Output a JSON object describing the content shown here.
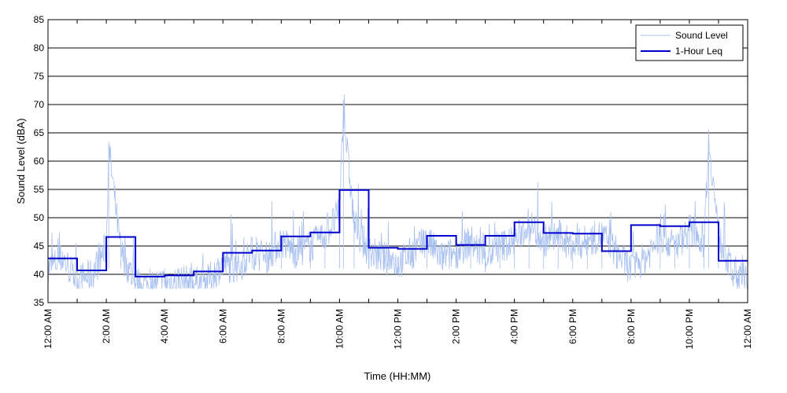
{
  "chart_data": {
    "type": "line",
    "title": "",
    "xlabel": "Time (HH:MM)",
    "ylabel": "Sound Level (dBA)",
    "xlim": [
      0,
      24
    ],
    "ylim": [
      35,
      85
    ],
    "y_ticks": [
      35,
      40,
      45,
      50,
      55,
      60,
      65,
      70,
      75,
      80,
      85
    ],
    "x_tick_labels": [
      "12:00 AM",
      "2:00 AM",
      "4:00 AM",
      "6:00 AM",
      "8:00 AM",
      "10:00 AM",
      "12:00 PM",
      "2:00 PM",
      "4:00 PM",
      "6:00 PM",
      "8:00 PM",
      "10:00 PM",
      "12:00 AM"
    ],
    "grid": "horizontal",
    "legend": "top-right",
    "series": [
      {
        "name": "Sound Level",
        "color": "#a8c0f0",
        "x": [
          "12:00 AM",
          "12:30 AM",
          "1:00 AM",
          "1:30 AM",
          "2:00 AM",
          "2:05 AM",
          "2:30 AM",
          "3:00 AM",
          "3:30 AM",
          "4:00 AM",
          "4:30 AM",
          "5:00 AM",
          "5:30 AM",
          "6:00 AM",
          "6:30 AM",
          "7:00 AM",
          "7:30 AM",
          "8:00 AM",
          "8:30 AM",
          "9:00 AM",
          "9:30 AM",
          "10:00 AM",
          "10:08 AM",
          "10:30 AM",
          "11:00 AM",
          "11:30 AM",
          "12:00 PM",
          "12:30 PM",
          "1:00 PM",
          "1:30 PM",
          "2:00 PM",
          "2:30 PM",
          "3:00 PM",
          "3:30 PM",
          "4:00 PM",
          "4:30 PM",
          "5:00 PM",
          "5:30 PM",
          "6:00 PM",
          "6:30 PM",
          "7:00 PM",
          "7:30 PM",
          "8:00 PM",
          "8:30 PM",
          "9:00 PM",
          "9:30 PM",
          "10:00 PM",
          "10:30 PM",
          "10:40 PM",
          "11:00 PM",
          "11:30 PM",
          "12:00 AM"
        ],
        "values": [
          42,
          44,
          40,
          41,
          46,
          63.5,
          45,
          39.5,
          39,
          39.5,
          40,
          39.5,
          40,
          43,
          42,
          45,
          44,
          47,
          45,
          46,
          48,
          52,
          70,
          50,
          45,
          44,
          43,
          45,
          47,
          44,
          45,
          47,
          44,
          46,
          47,
          50,
          47,
          48,
          46,
          47,
          48,
          45,
          42,
          44,
          48,
          46,
          49,
          47,
          65,
          48,
          41,
          40
        ]
      },
      {
        "name": "1-Hour Leq",
        "color": "#0000cc",
        "x": [
          "12:00 AM",
          "1:00 AM",
          "2:00 AM",
          "3:00 AM",
          "4:00 AM",
          "5:00 AM",
          "6:00 AM",
          "7:00 AM",
          "8:00 AM",
          "9:00 AM",
          "10:00 AM",
          "11:00 AM",
          "12:00 PM",
          "1:00 PM",
          "2:00 PM",
          "3:00 PM",
          "4:00 PM",
          "5:00 PM",
          "6:00 PM",
          "7:00 PM",
          "8:00 PM",
          "9:00 PM",
          "10:00 PM",
          "11:00 PM"
        ],
        "values": [
          42.8,
          40.7,
          46.6,
          39.6,
          39.8,
          40.5,
          43.8,
          44.2,
          46.7,
          47.4,
          54.9,
          44.7,
          44.5,
          46.8,
          45.2,
          46.8,
          49.2,
          47.3,
          47.2,
          44.1,
          48.7,
          48.5,
          49.2,
          42.4
        ]
      }
    ]
  }
}
